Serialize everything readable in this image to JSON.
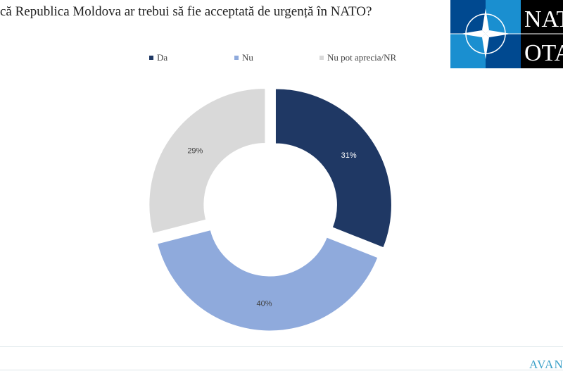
{
  "title": "că Republica Moldova ar trebui să fie acceptată de urgență în NATO?",
  "logo": {
    "text_top": "NATO",
    "text_bottom": "OTAN",
    "colors": {
      "dark_blue": "#004990",
      "light_blue": "#1a8fd0",
      "black": "#000000"
    }
  },
  "footer": {
    "brand": "AVANGARDE"
  },
  "chart_data": {
    "type": "pie",
    "variant": "donut-exploded",
    "legend_position": "top",
    "categories": [
      "Da",
      "Nu",
      "Nu pot aprecia/NR"
    ],
    "values": [
      31,
      40,
      29
    ],
    "labels": [
      "31%",
      "40%",
      "29%"
    ],
    "colors": [
      "#1f3864",
      "#8faadc",
      "#d9d9d9"
    ],
    "label_colors": [
      "#ffffff",
      "#404040",
      "#404040"
    ]
  }
}
